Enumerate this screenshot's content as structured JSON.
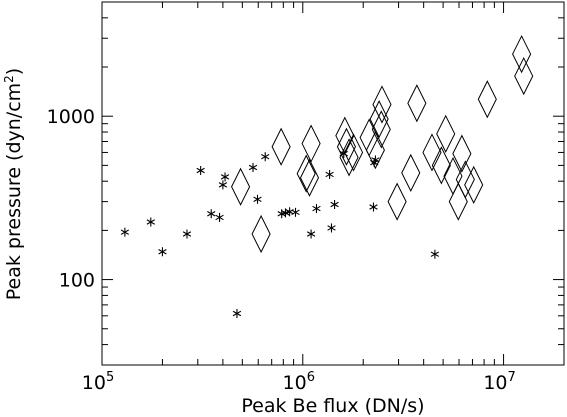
{
  "chart_data": {
    "type": "scatter",
    "title": "",
    "xlabel": "Peak Be flux (DN/s)",
    "ylabel_main": "Peak pressure (dyn/cm",
    "ylabel_sup": "2",
    "ylabel_close": ")",
    "x_scale": "log",
    "y_scale": "log",
    "xlim": [
      100000,
      20000000
    ],
    "ylim": [
      30,
      5000
    ],
    "grid": false,
    "legend": "none",
    "x_ticks": [
      {
        "value": 100000,
        "base": "10",
        "exp": "5"
      },
      {
        "value": 1000000,
        "base": "10",
        "exp": "6"
      },
      {
        "value": 10000000,
        "base": "10",
        "exp": "7"
      }
    ],
    "y_ticks": [
      {
        "value": 100,
        "label": "100"
      },
      {
        "value": 1000,
        "label": "1000"
      }
    ],
    "series": [
      {
        "marker": "asterisk",
        "x": [
          130000,
          175000,
          200000,
          265000,
          310000,
          350000,
          385000,
          400000,
          410000,
          470000,
          565000,
          595000,
          650000,
          785000,
          820000,
          860000,
          920000,
          1100000,
          1170000,
          1360000,
          1390000,
          1440000,
          1600000,
          2250000,
          2270000,
          2300000,
          4550000
        ],
        "y": [
          195,
          225,
          148,
          190,
          465,
          253,
          240,
          380,
          425,
          62,
          485,
          310,
          565,
          253,
          256,
          260,
          258,
          190,
          272,
          440,
          207,
          288,
          590,
          278,
          520,
          540,
          143
        ]
      },
      {
        "marker": "diamond",
        "x": [
          490000,
          620000,
          780000,
          1040000,
          1080000,
          1100000,
          1620000,
          1650000,
          1700000,
          1790000,
          2140000,
          2300000,
          2400000,
          2460000,
          2480000,
          2950000,
          3450000,
          3700000,
          4400000,
          4900000,
          5150000,
          5600000,
          5950000,
          6200000,
          6450000,
          7100000,
          8300000,
          12300000,
          12600000
        ],
        "y": [
          370,
          190,
          650,
          445,
          420,
          680,
          760,
          650,
          560,
          600,
          740,
          620,
          960,
          830,
          1180,
          300,
          450,
          1200,
          600,
          500,
          780,
          430,
          300,
          590,
          410,
          380,
          1270,
          2400,
          1760
        ]
      }
    ]
  }
}
